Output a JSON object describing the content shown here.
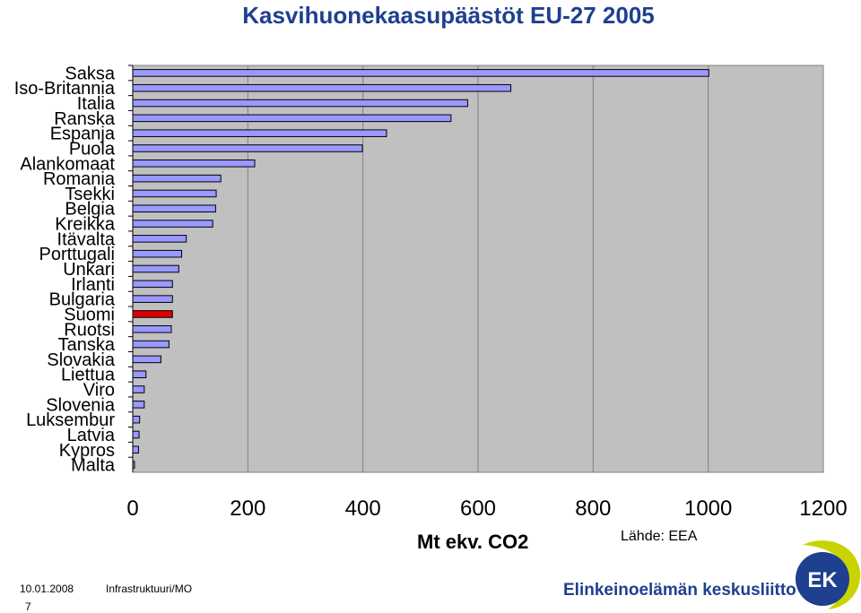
{
  "title": "Kasvihuonekaasupäästöt EU-27 2005",
  "chart_data": {
    "type": "bar",
    "orientation": "horizontal",
    "title": "Kasvihuonekaasupäästöt EU-27 2005",
    "xlabel": "Mt ekv. CO2",
    "ylabel": "",
    "xlim": [
      0,
      1200
    ],
    "x_ticks": [
      "0",
      "200",
      "400",
      "600",
      "800",
      "1000",
      "1200"
    ],
    "grid": true,
    "categories": [
      "Saksa",
      "Iso-Britannia",
      "Italia",
      "Ranska",
      "Espanja",
      "Puola",
      "Alankomaat",
      "Romania",
      "Tsekki",
      "Belgia",
      "Kreikka",
      "Itävalta",
      "Porttugali",
      "Unkari",
      "Irlanti",
      "Bulgaria",
      "Suomi",
      "Ruotsi",
      "Tanska",
      "Slovakia",
      "Liettua",
      "Viro",
      "Slovenia",
      "Luksembur",
      "Latvia",
      "Kypros",
      "Malta"
    ],
    "values": [
      1001,
      657,
      582,
      553,
      441,
      399,
      212,
      153,
      145,
      144,
      139,
      93,
      85,
      80,
      69,
      69,
      69,
      67,
      63,
      49,
      23,
      20,
      20,
      12,
      11,
      10,
      3
    ],
    "bar_color": "#9999ff",
    "highlight_color": "#e00000",
    "highlight_category": "Suomi",
    "plot_background": "#c0c0c0"
  },
  "source": "Lähde: EEA",
  "footer": {
    "date": "10.01.2008",
    "department": "Infrastruktuuri/MO",
    "page": "7",
    "organization": "Elinkeinoelämän keskusliitto",
    "logo_text": "EK"
  }
}
